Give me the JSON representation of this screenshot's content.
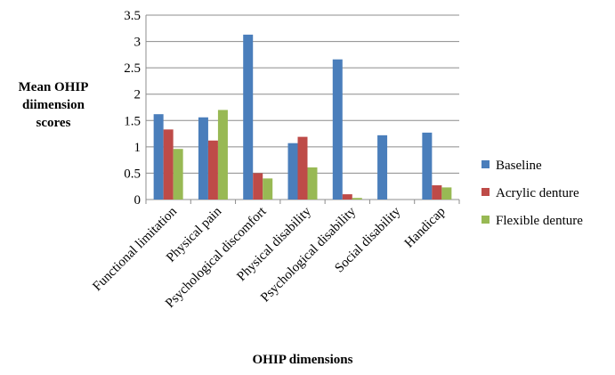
{
  "chart_data": {
    "type": "bar",
    "ylabel_lines": [
      "Mean OHIP",
      "diimension",
      "scores"
    ],
    "xlabel": "OHIP dimensions",
    "categories": [
      "Functional limitation",
      "Physical pain",
      "Psychological discomfort",
      "Physical disability",
      "Psychological disability",
      "Social disability",
      "Handicap"
    ],
    "y_ticks": [
      "0",
      "0.5",
      "1",
      "1.5",
      "2",
      "2.5",
      "3",
      "3.5"
    ],
    "ylim": [
      0,
      3.5
    ],
    "grid": true,
    "legend_position": "right",
    "series": [
      {
        "name": "Baseline",
        "color": "#4a7ebb",
        "values": [
          1.62,
          1.56,
          3.13,
          1.07,
          2.66,
          1.22,
          1.27
        ]
      },
      {
        "name": "Acrylic denture",
        "color": "#be4b48",
        "values": [
          1.33,
          1.12,
          0.5,
          1.19,
          0.1,
          0,
          0.27
        ]
      },
      {
        "name": "Flexible denture",
        "color": "#98b954",
        "values": [
          0.96,
          1.7,
          0.4,
          0.61,
          0.03,
          0,
          0.23
        ]
      }
    ]
  }
}
